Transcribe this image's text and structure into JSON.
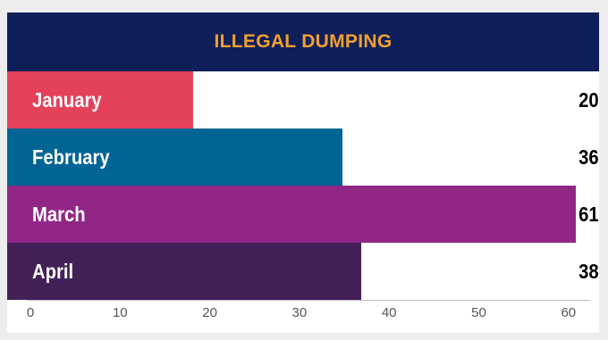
{
  "colors": {
    "background": "#ededed",
    "title_bar": "#0f1f5a",
    "title_text": "#f0a030"
  },
  "chart_data": {
    "type": "bar",
    "orientation": "horizontal",
    "title": "ILLEGAL DUMPING",
    "categories": [
      "January",
      "February",
      "March",
      "April"
    ],
    "values": [
      20,
      36,
      61,
      38
    ],
    "value_labels": [
      "20",
      "36",
      "61",
      "38"
    ],
    "colors": [
      "#e4425a",
      "#006494",
      "#922687",
      "#432158"
    ],
    "xlim": [
      0,
      62
    ],
    "x_ticks": [
      0,
      10,
      20,
      30,
      40,
      50,
      60
    ],
    "x_tick_labels": [
      "0",
      "10",
      "20",
      "30",
      "40",
      "50",
      "60"
    ],
    "grid": false,
    "legend": "none"
  }
}
